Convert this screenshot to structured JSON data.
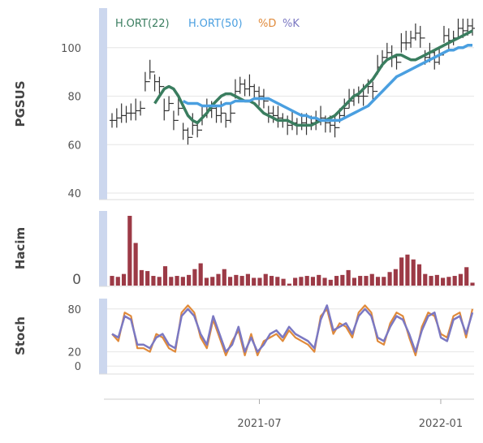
{
  "colors": {
    "price": "#333333",
    "ma22": "#3a7d5f",
    "ma50": "#4a9fe0",
    "volume": "#9c3a46",
    "pctD": "#e08a3a",
    "pctK": "#7b78c2",
    "panel_bar": "#ccd7ee",
    "grid": "#e6e6e6"
  },
  "chart_data": [
    {
      "type": "line",
      "panel": "price",
      "ylabel": "PGSUS",
      "ylim": [
        38,
        115
      ],
      "yticks": [
        40,
        60,
        80,
        100
      ],
      "legend": [
        {
          "label": "H.ORT(22)",
          "color": "#3a7d5f"
        },
        {
          "label": "H.ORT(50)",
          "color": "#4a9fe0"
        },
        {
          "label": "%D",
          "color": "#e08a3a"
        },
        {
          "label": "%K",
          "color": "#7b78c2"
        }
      ],
      "ohlc_close": [
        70,
        71,
        72,
        73,
        73,
        74,
        75,
        86,
        90,
        86,
        84,
        74,
        77,
        70,
        75,
        66,
        63,
        68,
        66,
        72,
        74,
        75,
        72,
        73,
        70,
        73,
        82,
        85,
        83,
        84,
        82,
        80,
        78,
        73,
        72,
        71,
        70,
        68,
        69,
        68,
        69,
        68,
        69,
        70,
        71,
        69,
        68,
        67,
        72,
        75,
        78,
        80,
        80,
        80,
        84,
        82,
        92,
        96,
        98,
        96,
        94,
        102,
        102,
        104,
        106,
        104,
        96,
        98,
        94,
        97,
        105,
        103,
        104,
        108,
        107,
        109,
        108
      ],
      "series": [
        {
          "name": "H.ORT(22)",
          "values": [
            null,
            null,
            null,
            null,
            null,
            null,
            null,
            null,
            null,
            77,
            80,
            83,
            84,
            83,
            80,
            76,
            72,
            70,
            69,
            71,
            73,
            76,
            78,
            80,
            81,
            81,
            80,
            79,
            78,
            78,
            77,
            75,
            73,
            72,
            71,
            70,
            70,
            70,
            69,
            68,
            68,
            68,
            68,
            69,
            70,
            70,
            71,
            72,
            74,
            76,
            78,
            80,
            81,
            83,
            85,
            87,
            90,
            93,
            95,
            96,
            97,
            97,
            96,
            95,
            95,
            96,
            97,
            98,
            99,
            100,
            101,
            102,
            103,
            104,
            105,
            106,
            107
          ]
        },
        {
          "name": "H.ORT(50)",
          "values": [
            null,
            null,
            null,
            null,
            null,
            null,
            null,
            null,
            null,
            null,
            null,
            null,
            null,
            null,
            null,
            78,
            77,
            77,
            77,
            76,
            76,
            76,
            76,
            76,
            77,
            77,
            78,
            78,
            78,
            78,
            79,
            79,
            79,
            79,
            78,
            77,
            76,
            75,
            74,
            73,
            72,
            72,
            71,
            71,
            70,
            70,
            70,
            70,
            70,
            71,
            72,
            73,
            74,
            75,
            76,
            78,
            80,
            82,
            84,
            86,
            88,
            89,
            90,
            91,
            92,
            93,
            94,
            95,
            96,
            97,
            98,
            99,
            99,
            100,
            100,
            101,
            101
          ]
        }
      ]
    },
    {
      "type": "bar",
      "panel": "volume",
      "ylabel": "Hacim",
      "yticks": [
        0
      ],
      "values": [
        10,
        9,
        12,
        72,
        44,
        16,
        15,
        10,
        9,
        20,
        9,
        10,
        9,
        11,
        17,
        23,
        8,
        9,
        12,
        17,
        9,
        11,
        10,
        12,
        8,
        8,
        12,
        10,
        9,
        7,
        2,
        8,
        9,
        10,
        9,
        11,
        8,
        6,
        10,
        11,
        16,
        8,
        10,
        10,
        12,
        9,
        9,
        14,
        17,
        29,
        32,
        27,
        22,
        12,
        10,
        11,
        8,
        9,
        10,
        12,
        19,
        3
      ]
    },
    {
      "type": "line",
      "panel": "stoch",
      "ylabel": "Stoch",
      "ylim": [
        -10,
        90
      ],
      "yticks": [
        0,
        20,
        80
      ],
      "series": [
        {
          "name": "%D",
          "values": [
            45,
            35,
            75,
            70,
            25,
            25,
            20,
            45,
            40,
            25,
            20,
            75,
            85,
            75,
            40,
            25,
            65,
            40,
            15,
            35,
            50,
            15,
            45,
            15,
            35,
            40,
            45,
            35,
            50,
            40,
            35,
            30,
            20,
            70,
            80,
            45,
            60,
            55,
            40,
            75,
            85,
            75,
            35,
            30,
            60,
            75,
            70,
            40,
            15,
            55,
            75,
            70,
            45,
            40,
            70,
            75,
            40,
            80
          ]
        },
        {
          "name": "%K",
          "values": [
            45,
            40,
            70,
            65,
            30,
            30,
            25,
            40,
            45,
            30,
            25,
            70,
            80,
            70,
            45,
            30,
            70,
            45,
            20,
            30,
            55,
            20,
            40,
            20,
            30,
            45,
            50,
            40,
            55,
            45,
            40,
            35,
            25,
            65,
            85,
            50,
            55,
            60,
            45,
            70,
            80,
            70,
            40,
            35,
            55,
            70,
            65,
            45,
            20,
            50,
            70,
            75,
            40,
            35,
            65,
            70,
            45,
            75
          ]
        }
      ]
    }
  ],
  "xaxis": {
    "ticks": [
      {
        "label": "2021-07",
        "pos": 0.42
      },
      {
        "label": "2022-01",
        "pos": 0.91
      }
    ]
  }
}
